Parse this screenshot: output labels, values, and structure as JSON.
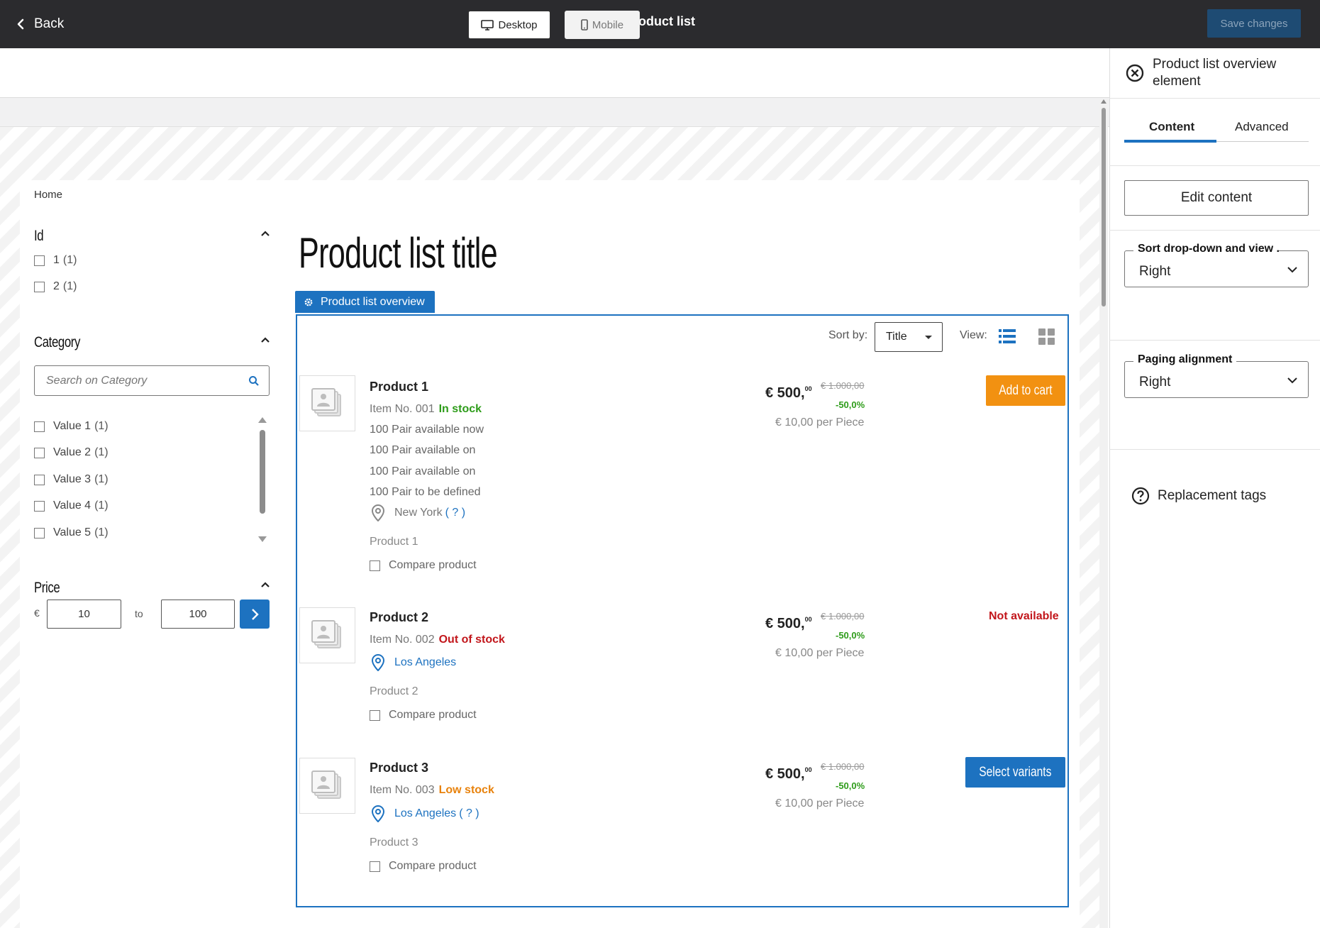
{
  "topbar": {
    "back_label": "Back",
    "title": "Product list",
    "save_label": "Save changes"
  },
  "device": {
    "desktop_label": "Desktop",
    "mobile_label": "Mobile"
  },
  "breadcrumb": "Home",
  "filters": {
    "id": {
      "title": "Id",
      "items": [
        {
          "label": "1",
          "count": "(1)"
        },
        {
          "label": "2",
          "count": "(1)"
        }
      ]
    },
    "category": {
      "title": "Category",
      "search_placeholder": "Search on Category",
      "items": [
        {
          "label": "Value 1",
          "count": "(1)"
        },
        {
          "label": "Value 2",
          "count": "(1)"
        },
        {
          "label": "Value 3",
          "count": "(1)"
        },
        {
          "label": "Value 4",
          "count": "(1)"
        },
        {
          "label": "Value 5",
          "count": "(1)"
        }
      ]
    },
    "price": {
      "title": "Price",
      "currency": "€",
      "min": "10",
      "to_label": "to",
      "max": "100"
    }
  },
  "main": {
    "title": "Product list title",
    "overview_tag": "Product list overview",
    "sort_label": "Sort by:",
    "sort_value": "Title",
    "view_label": "View:"
  },
  "products": [
    {
      "name": "Product 1",
      "item_no": "Item No. 001",
      "stock": "In stock",
      "availability": [
        "100 Pair available now",
        "100 Pair available on",
        "100 Pair available on",
        "100 Pair to be defined"
      ],
      "location": "New York",
      "location_help": "( ? )",
      "sub": "Product 1",
      "compare": "Compare product",
      "price": "€ 500,",
      "price_cents": "00",
      "old_price": "€ 1.000,00",
      "discount": "-50,0%",
      "unit_price": "€ 10,00 per Piece",
      "action": "Add to cart"
    },
    {
      "name": "Product 2",
      "item_no": "Item No. 002",
      "stock": "Out of stock",
      "location": "Los Angeles",
      "sub": "Product 2",
      "compare": "Compare product",
      "price": "€ 500,",
      "price_cents": "00",
      "old_price": "€ 1.000,00",
      "discount": "-50,0%",
      "unit_price": "€ 10,00 per Piece",
      "action": "Not available"
    },
    {
      "name": "Product 3",
      "item_no": "Item No. 003",
      "stock": "Low stock",
      "location": "Los Angeles",
      "location_help": "( ? )",
      "sub": "Product 3",
      "compare": "Compare product",
      "price": "€ 500,",
      "price_cents": "00",
      "old_price": "€ 1.000,00",
      "discount": "-50,0%",
      "unit_price": "€ 10,00 per Piece",
      "action": "Select variants"
    }
  ],
  "panel": {
    "title": "Product list overview element",
    "tab_content": "Content",
    "tab_advanced": "Advanced",
    "edit_content": "Edit content",
    "sort_dropdown_label": "Sort drop-down and view ...",
    "sort_dropdown_value": "Right",
    "paging_label": "Paging alignment",
    "paging_value": "Right",
    "replacement_tags": "Replacement tags"
  },
  "colors": {
    "accent": "#1d72c0",
    "in_stock": "#2e9c1a",
    "out_of_stock": "#c2161b",
    "low_stock": "#e8820c",
    "cart_button": "#f29111",
    "topbar": "#2b2b2e"
  }
}
